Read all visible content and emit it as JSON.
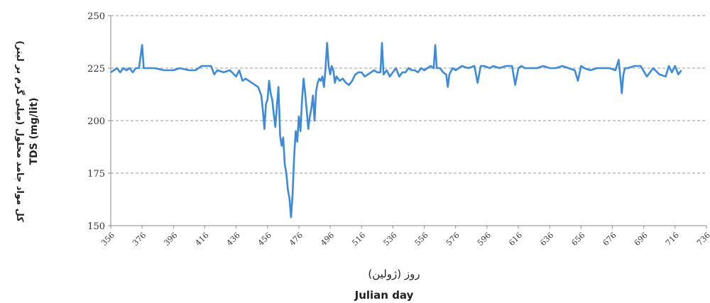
{
  "chart_data": {
    "type": "line",
    "xlabel_fa": "روز (ژولین)",
    "xlabel": "Julian day",
    "ylabel_fa": "کل مواد جامد محلول (میلی گرم بر لیتر)",
    "ylabel": "TDS (mg/lit)",
    "xlim": [
      356,
      736
    ],
    "ylim": [
      150,
      250
    ],
    "x_ticks": [
      356,
      376,
      396,
      416,
      436,
      456,
      476,
      496,
      516,
      536,
      556,
      576,
      596,
      616,
      636,
      656,
      676,
      696,
      716,
      736
    ],
    "y_ticks": [
      150,
      175,
      200,
      225,
      250
    ],
    "grid": "horizontal dashed",
    "line_color": "#3d8ad8",
    "series": [
      {
        "x": [
          356,
          360,
          362,
          364,
          366,
          368,
          370,
          372,
          374,
          376,
          377,
          378,
          380,
          384,
          390,
          396,
          400,
          406,
          410,
          414,
          416,
          420,
          422,
          424,
          428,
          432,
          436,
          438,
          440,
          442,
          444,
          446,
          448,
          450,
          452,
          453,
          454,
          455,
          456,
          457,
          458,
          459,
          460,
          461,
          462,
          463,
          464,
          465,
          466,
          467,
          468,
          469,
          470,
          471,
          472,
          473,
          474,
          475,
          476,
          477,
          478,
          479,
          480,
          481,
          482,
          483,
          484,
          485,
          486,
          487,
          488,
          489,
          490,
          491,
          492,
          493,
          494,
          495,
          496,
          497,
          498,
          499,
          500,
          502,
          504,
          506,
          508,
          510,
          512,
          514,
          516,
          518,
          520,
          522,
          524,
          526,
          528,
          529,
          530,
          532,
          534,
          536,
          538,
          540,
          542,
          544,
          546,
          548,
          550,
          552,
          554,
          556,
          558,
          560,
          562,
          563,
          564,
          566,
          568,
          570,
          571,
          572,
          574,
          576,
          580,
          584,
          588,
          590,
          592,
          594,
          598,
          600,
          604,
          608,
          612,
          614,
          616,
          618,
          620,
          624,
          628,
          632,
          636,
          640,
          644,
          648,
          652,
          654,
          656,
          658,
          662,
          666,
          670,
          674,
          678,
          680,
          682,
          683,
          684,
          686,
          690,
          694,
          698,
          702,
          706,
          710,
          712,
          714,
          716,
          718,
          720
        ],
        "values": [
          223,
          225,
          223,
          225,
          224,
          225,
          223,
          225,
          225,
          236,
          225,
          225,
          225,
          225,
          224,
          224,
          225,
          224,
          224,
          226,
          226,
          226,
          222,
          224,
          223,
          224,
          221,
          224,
          219,
          220,
          219,
          218,
          217,
          216,
          212,
          205,
          196,
          208,
          210,
          219,
          213,
          210,
          203,
          197,
          207,
          216,
          193,
          188,
          192,
          179,
          175,
          167,
          163,
          154,
          165,
          183,
          195,
          190,
          202,
          195,
          210,
          220,
          213,
          205,
          196,
          202,
          206,
          212,
          200,
          214,
          218,
          220,
          219,
          221,
          216,
          225,
          237,
          226,
          222,
          226,
          224,
          218,
          221,
          219,
          220,
          218,
          217,
          219,
          222,
          223,
          223,
          221,
          222,
          223,
          224,
          223,
          223,
          237,
          222,
          224,
          221,
          223,
          225,
          221,
          223,
          223,
          225,
          224,
          224,
          223,
          225,
          224,
          225,
          226,
          225,
          236,
          225,
          225,
          223,
          222,
          216,
          222,
          225,
          224,
          226,
          225,
          226,
          218,
          226,
          226,
          225,
          226,
          225,
          226,
          226,
          217,
          225,
          226,
          225,
          225,
          225,
          226,
          225,
          225,
          226,
          225,
          224,
          219,
          226,
          225,
          224,
          225,
          225,
          225,
          224,
          229,
          213,
          222,
          225,
          225,
          226,
          226,
          221,
          225,
          222,
          221,
          226,
          223,
          226,
          222,
          224
        ]
      }
    ]
  }
}
